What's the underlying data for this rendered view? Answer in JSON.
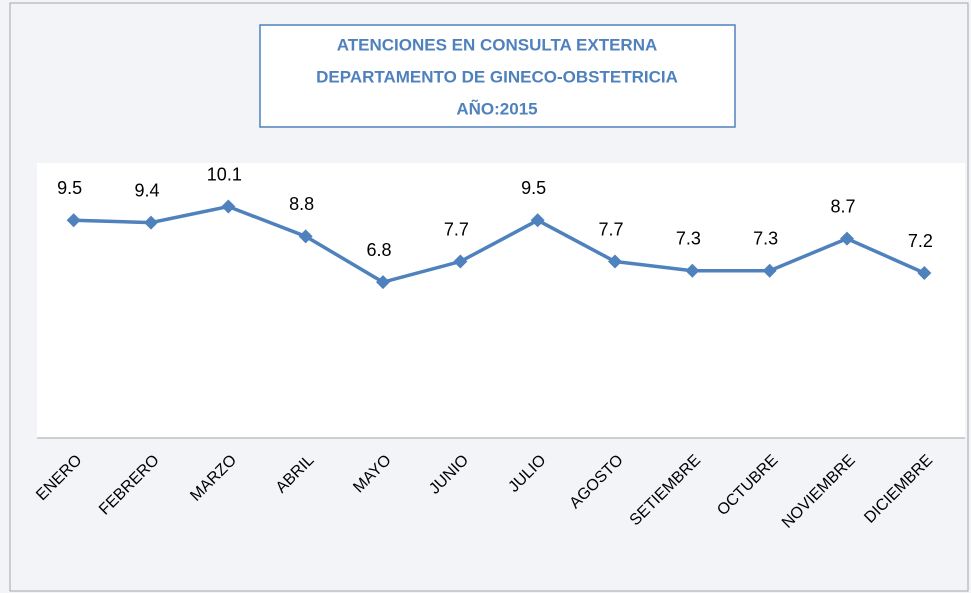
{
  "chart_data": {
    "type": "line",
    "title": [
      "ATENCIONES EN CONSULTA EXTERNA",
      "DEPARTAMENTO DE GINECO-OBSTETRICIA",
      "AÑO:2015"
    ],
    "categories": [
      "ENERO",
      "FEBRERO",
      "MARZO",
      "ABRIL",
      "MAYO",
      "JUNIO",
      "JULIO",
      "AGOSTO",
      "SETIEMBRE",
      "OCTUBRE",
      "NOVIEMBRE",
      "DICIEMBRE"
    ],
    "series": [
      {
        "color": "#4f81bd",
        "values": [
          9.5,
          9.4,
          10.1,
          8.8,
          6.8,
          7.7,
          9.5,
          7.7,
          7.3,
          7.3,
          8.7,
          7.2
        ]
      }
    ],
    "ylim": [
      0,
      12
    ],
    "grid": false
  }
}
